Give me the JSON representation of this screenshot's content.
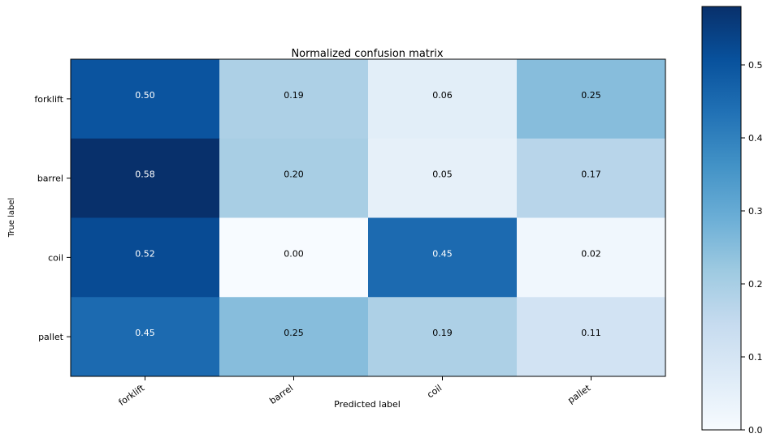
{
  "chart_data": {
    "type": "heatmap",
    "title": "Normalized confusion matrix",
    "xlabel": "Predicted label",
    "ylabel": "True label",
    "x_categories": [
      "forklift",
      "barrel",
      "coil",
      "pallet"
    ],
    "y_categories": [
      "forklift",
      "barrel",
      "coil",
      "pallet"
    ],
    "values": [
      [
        0.5,
        0.19,
        0.06,
        0.25
      ],
      [
        0.58,
        0.2,
        0.05,
        0.17
      ],
      [
        0.52,
        0.0,
        0.45,
        0.02
      ],
      [
        0.45,
        0.25,
        0.19,
        0.11
      ]
    ],
    "value_labels": [
      [
        "0.50",
        "0.19",
        "0.06",
        "0.25"
      ],
      [
        "0.58",
        "0.20",
        "0.05",
        "0.17"
      ],
      [
        "0.52",
        "0.00",
        "0.45",
        "0.02"
      ],
      [
        "0.45",
        "0.25",
        "0.19",
        "0.11"
      ]
    ],
    "colormap": "Blues",
    "color_range": [
      0.0,
      0.58
    ],
    "colorbar_ticks": [
      0.0,
      0.1,
      0.2,
      0.3,
      0.4,
      0.5
    ],
    "colorbar_tick_labels": [
      "0.0",
      "0.1",
      "0.2",
      "0.3",
      "0.4",
      "0.5"
    ],
    "grid": false
  }
}
